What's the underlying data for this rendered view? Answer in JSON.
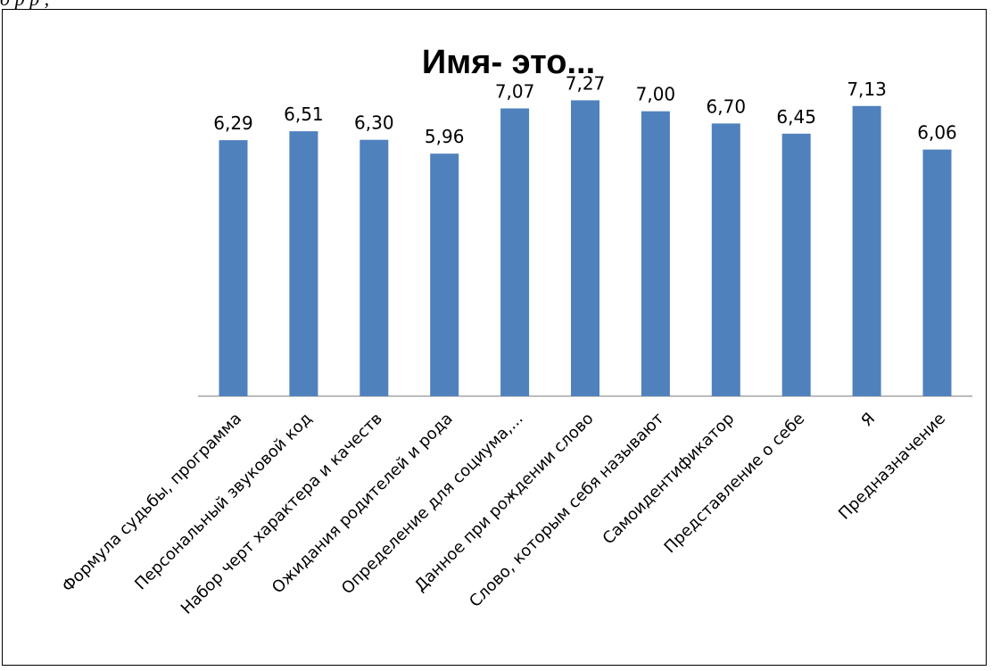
{
  "caption": "д  р              р        ,",
  "chart_data": {
    "type": "bar",
    "title": "Имя- это...",
    "xlabel": "",
    "ylabel": "",
    "ylim": [
      0,
      8.2
    ],
    "grid": false,
    "legend": "none",
    "bar_color": "#4f81bd",
    "categories": [
      "Формула судьбы, программа",
      "Персональный звуковой код",
      "Набор черт характера и качеств",
      "Ожидания родителей и рода",
      "Определение для социума,...",
      "Данное при рождении слово",
      "Слово, которым себя называют",
      "Самоидентификатор",
      "Представление о себе",
      "Я",
      "Предназначение"
    ],
    "values": [
      6.29,
      6.51,
      6.3,
      5.96,
      7.07,
      7.27,
      7.0,
      6.7,
      6.45,
      7.13,
      6.06
    ],
    "value_labels": [
      "6,29",
      "6,51",
      "6,30",
      "5,96",
      "7,07",
      "7,27",
      "7,00",
      "6,70",
      "6,45",
      "7,13",
      "6,06"
    ]
  }
}
